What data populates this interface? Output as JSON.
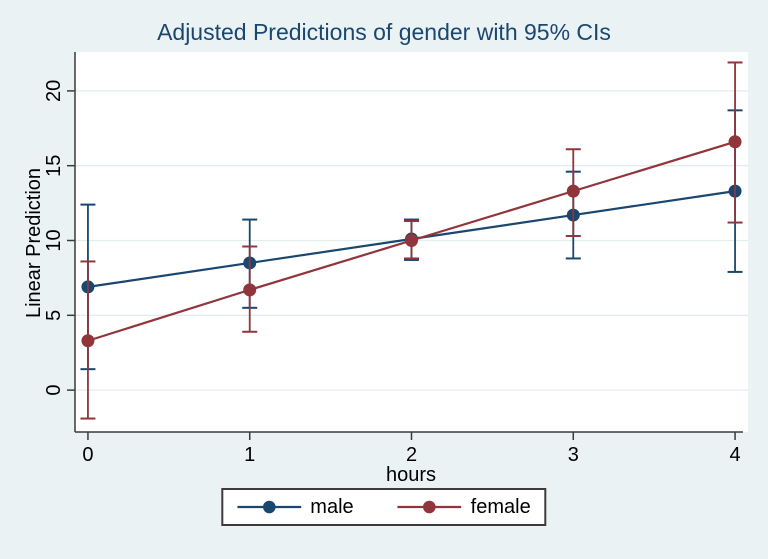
{
  "chart_data": {
    "type": "line",
    "title": "Adjusted Predictions of gender with 95% CIs",
    "xlabel": "hours",
    "ylabel": "Linear Prediction",
    "x": [
      0,
      1,
      2,
      3,
      4
    ],
    "series": [
      {
        "name": "male",
        "color": "#1a476f",
        "values": [
          6.9,
          8.5,
          10.1,
          11.7,
          13.3
        ],
        "ci_low": [
          1.4,
          5.5,
          8.7,
          8.8,
          7.9
        ],
        "ci_high": [
          12.4,
          11.4,
          11.4,
          14.6,
          18.7
        ]
      },
      {
        "name": "female",
        "color": "#90353b",
        "values": [
          3.3,
          6.7,
          10.0,
          13.3,
          16.6
        ],
        "ci_low": [
          -1.9,
          3.9,
          8.8,
          10.3,
          11.2
        ],
        "ci_high": [
          8.6,
          9.6,
          11.3,
          16.1,
          21.9
        ]
      }
    ],
    "error_bars": true,
    "xticks": [
      0,
      1,
      2,
      3,
      4
    ],
    "yticks": [
      0,
      5,
      10,
      15,
      20
    ],
    "xlim": [
      -0.08,
      4.08
    ],
    "ylim": [
      -2.8,
      22.6
    ],
    "grid": "horizontal",
    "legend_position": "bottom"
  },
  "legend": {
    "items": [
      {
        "label": "male",
        "color": "#1a476f"
      },
      {
        "label": "female",
        "color": "#90353b"
      }
    ]
  },
  "colors": {
    "background": "#eaf2f3",
    "plot_background": "#ffffff",
    "gridline": "#e1eef0",
    "axis": "#3b3b3b",
    "title": "#1a476f",
    "text": "#000000"
  }
}
